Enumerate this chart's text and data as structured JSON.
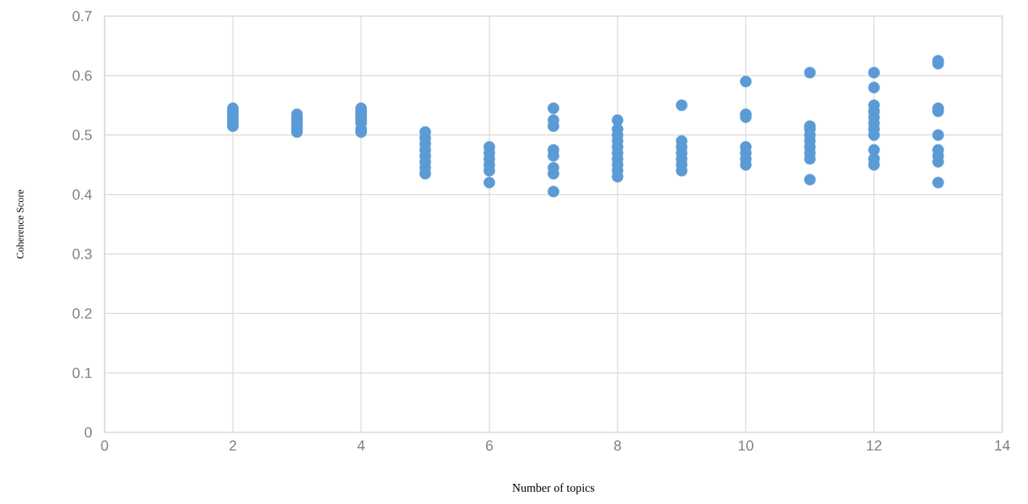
{
  "chart_data": {
    "type": "scatter",
    "xlabel": "Number of topics",
    "ylabel": "Coherence Score",
    "xlim": [
      0,
      14
    ],
    "xticks": [
      0,
      2,
      4,
      6,
      8,
      10,
      12,
      14
    ],
    "ylim": [
      0,
      0.7
    ],
    "yticks": [
      0,
      0.1,
      0.2,
      0.3,
      0.4,
      0.5,
      0.6,
      0.7
    ],
    "grid": true,
    "marker": "circle",
    "series": [
      {
        "color": "#5b9bd5",
        "x": [
          2,
          2,
          2,
          2,
          2,
          2,
          2,
          3,
          3,
          3,
          3,
          3,
          3,
          3,
          4,
          4,
          4,
          4,
          4,
          4,
          4,
          4,
          5,
          5,
          5,
          5,
          5,
          5,
          5,
          5,
          6,
          6,
          6,
          6,
          6,
          6,
          7,
          7,
          7,
          7,
          7,
          7,
          7,
          7,
          8,
          8,
          8,
          8,
          8,
          8,
          8,
          8,
          8,
          8,
          9,
          9,
          9,
          9,
          9,
          9,
          9,
          10,
          10,
          10,
          10,
          10,
          10,
          10,
          11,
          11,
          11,
          11,
          11,
          11,
          11,
          11,
          11,
          12,
          12,
          12,
          12,
          12,
          12,
          12,
          12,
          12,
          12,
          12,
          13,
          13,
          13,
          13,
          13,
          13,
          13,
          13,
          13
        ],
        "values": [
          0.515,
          0.52,
          0.525,
          0.53,
          0.535,
          0.54,
          0.545,
          0.505,
          0.51,
          0.515,
          0.52,
          0.525,
          0.53,
          0.535,
          0.505,
          0.51,
          0.52,
          0.525,
          0.53,
          0.535,
          0.54,
          0.545,
          0.435,
          0.445,
          0.455,
          0.465,
          0.475,
          0.485,
          0.495,
          0.505,
          0.42,
          0.44,
          0.45,
          0.46,
          0.47,
          0.48,
          0.405,
          0.435,
          0.445,
          0.465,
          0.475,
          0.515,
          0.525,
          0.545,
          0.43,
          0.44,
          0.45,
          0.46,
          0.47,
          0.48,
          0.49,
          0.5,
          0.51,
          0.525,
          0.44,
          0.45,
          0.46,
          0.47,
          0.48,
          0.49,
          0.55,
          0.45,
          0.46,
          0.47,
          0.48,
          0.53,
          0.535,
          0.59,
          0.425,
          0.46,
          0.47,
          0.48,
          0.49,
          0.5,
          0.51,
          0.515,
          0.605,
          0.45,
          0.46,
          0.475,
          0.5,
          0.51,
          0.52,
          0.53,
          0.54,
          0.55,
          0.58,
          0.605,
          0.42,
          0.455,
          0.465,
          0.475,
          0.5,
          0.54,
          0.545,
          0.62,
          0.625
        ]
      }
    ]
  }
}
